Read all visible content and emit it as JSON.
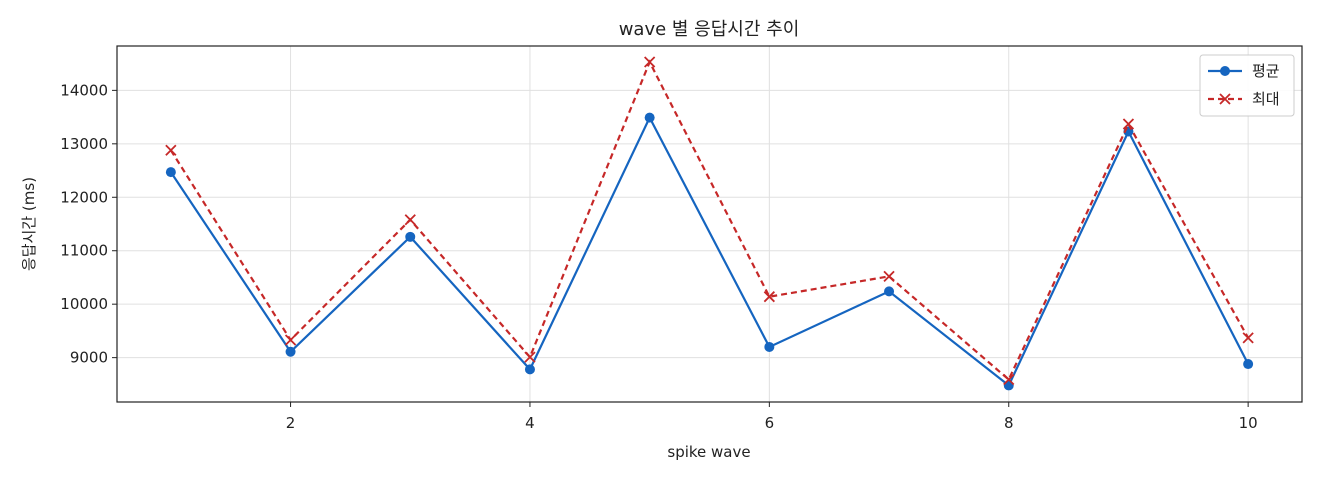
{
  "chart_data": {
    "type": "line",
    "title": "wave 별 응답시간 추이",
    "xlabel": "spike wave",
    "ylabel": "응답시간 (ms)",
    "xlim": [
      0.55,
      10.45
    ],
    "ylim": [
      8170,
      14830
    ],
    "x_ticks": [
      2,
      4,
      6,
      8,
      10
    ],
    "y_ticks": [
      9000,
      10000,
      11000,
      12000,
      13000,
      14000
    ],
    "grid": true,
    "legend_position": "top-right",
    "x": [
      1,
      2,
      3,
      4,
      5,
      6,
      7,
      8,
      9,
      10
    ],
    "series": [
      {
        "name": "평균",
        "color": "#1565c0",
        "line_style": "solid",
        "marker": "circle",
        "values": [
          12470,
          9110,
          11260,
          8780,
          13490,
          9200,
          10240,
          8480,
          13230,
          8880
        ]
      },
      {
        "name": "최대",
        "color": "#c62828",
        "line_style": "dashed",
        "marker": "x",
        "values": [
          12880,
          9330,
          11580,
          9010,
          14530,
          10140,
          10520,
          8590,
          13370,
          9370
        ]
      }
    ]
  }
}
